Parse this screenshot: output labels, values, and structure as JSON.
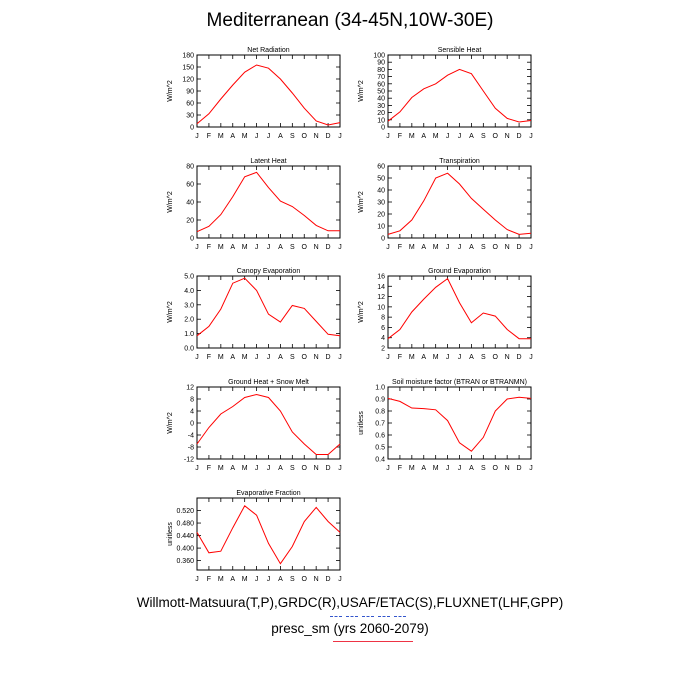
{
  "page": {
    "title": "Mediterranean (34-45N,10W-30E)",
    "legend_line1": "Willmott-Matsuura(T,P),GRDC(R),USAF/ETAC(S),FLUXNET(LHF,GPP)",
    "legend_line2": "presc_sm (yrs 2060-2079)",
    "series_color": "#ff0000"
  },
  "chart_data": [
    {
      "type": "line",
      "title": "Net Radiation",
      "ylabel": "W/m^2",
      "x": [
        "J",
        "F",
        "M",
        "A",
        "M",
        "J",
        "J",
        "A",
        "S",
        "O",
        "N",
        "D",
        "J"
      ],
      "ylim": [
        0,
        180
      ],
      "yticks": [
        0,
        30,
        60,
        90,
        120,
        150,
        180
      ],
      "ytick_labels": [
        "0",
        "30",
        "60",
        "90",
        "120",
        "150",
        "180"
      ],
      "series": [
        {
          "name": "presc_sm",
          "values": [
            8,
            33,
            70,
            105,
            137,
            155,
            147,
            120,
            85,
            47,
            15,
            5,
            11
          ]
        }
      ]
    },
    {
      "type": "line",
      "title": "Sensible Heat",
      "ylabel": "W/m^2",
      "x": [
        "J",
        "F",
        "M",
        "A",
        "M",
        "J",
        "J",
        "A",
        "S",
        "O",
        "N",
        "D",
        "J"
      ],
      "ylim": [
        0,
        100
      ],
      "yticks": [
        0,
        10,
        20,
        30,
        40,
        50,
        60,
        70,
        80,
        90,
        100
      ],
      "ytick_labels": [
        "0",
        "10",
        "20",
        "30",
        "40",
        "50",
        "60",
        "70",
        "80",
        "90",
        "100"
      ],
      "series": [
        {
          "name": "presc_sm",
          "values": [
            8,
            21,
            41,
            53,
            60,
            72,
            80,
            74,
            50,
            26,
            12,
            7,
            9
          ]
        }
      ]
    },
    {
      "type": "line",
      "title": "Latent Heat",
      "ylabel": "W/m^2",
      "x": [
        "J",
        "F",
        "M",
        "A",
        "M",
        "J",
        "J",
        "A",
        "S",
        "O",
        "N",
        "D",
        "J"
      ],
      "ylim": [
        0,
        80
      ],
      "yticks": [
        0,
        20,
        40,
        60,
        80
      ],
      "ytick_labels": [
        "0",
        "20",
        "40",
        "60",
        "80"
      ],
      "series": [
        {
          "name": "presc_sm",
          "values": [
            7,
            13,
            26,
            46,
            68,
            73,
            56,
            41,
            35,
            25,
            14,
            8,
            8
          ]
        }
      ]
    },
    {
      "type": "line",
      "title": "Transpiration",
      "ylabel": "W/m^2",
      "x": [
        "J",
        "F",
        "M",
        "A",
        "M",
        "J",
        "J",
        "A",
        "S",
        "O",
        "N",
        "D",
        "J"
      ],
      "ylim": [
        0,
        60
      ],
      "yticks": [
        0,
        10,
        20,
        30,
        40,
        50,
        60
      ],
      "ytick_labels": [
        "0",
        "10",
        "20",
        "30",
        "40",
        "50",
        "60"
      ],
      "series": [
        {
          "name": "presc_sm",
          "values": [
            3,
            6,
            15,
            31,
            50,
            54,
            45,
            33,
            24,
            15,
            7,
            3,
            4
          ]
        }
      ]
    },
    {
      "type": "line",
      "title": "Canopy Evaporation",
      "ylabel": "W/m^2",
      "x": [
        "J",
        "F",
        "M",
        "A",
        "M",
        "J",
        "J",
        "A",
        "S",
        "O",
        "N",
        "D",
        "J"
      ],
      "ylim": [
        0.0,
        5.0
      ],
      "yticks": [
        0,
        1,
        2,
        3,
        4,
        5
      ],
      "ytick_labels": [
        "0.0",
        "1.0",
        "2.0",
        "3.0",
        "4.0",
        "5.0"
      ],
      "series": [
        {
          "name": "presc_sm",
          "values": [
            0.85,
            1.5,
            2.7,
            4.5,
            4.85,
            4.0,
            2.35,
            1.8,
            2.95,
            2.75,
            1.85,
            0.95,
            0.85
          ]
        }
      ]
    },
    {
      "type": "line",
      "title": "Ground Evaporation",
      "ylabel": "W/m^2",
      "x": [
        "J",
        "F",
        "M",
        "A",
        "M",
        "J",
        "J",
        "A",
        "S",
        "O",
        "N",
        "D",
        "J"
      ],
      "ylim": [
        2,
        16
      ],
      "yticks": [
        2,
        4,
        6,
        8,
        10,
        12,
        14,
        16
      ],
      "ytick_labels": [
        "2",
        "4",
        "6",
        "8",
        "10",
        "12",
        "14",
        "16"
      ],
      "series": [
        {
          "name": "presc_sm",
          "values": [
            3.8,
            5.6,
            9.0,
            11.5,
            13.8,
            15.5,
            10.8,
            6.9,
            8.8,
            8.2,
            5.6,
            3.8,
            3.8
          ]
        }
      ]
    },
    {
      "type": "line",
      "title": "Ground Heat + Snow Melt",
      "ylabel": "W/m^2",
      "x": [
        "J",
        "F",
        "M",
        "A",
        "M",
        "J",
        "J",
        "A",
        "S",
        "O",
        "N",
        "D",
        "J"
      ],
      "ylim": [
        -12,
        12
      ],
      "yticks": [
        -12,
        -8,
        -4,
        0,
        4,
        8,
        12
      ],
      "ytick_labels": [
        "-12",
        "-8",
        "-4",
        "0",
        "4",
        "8",
        "12"
      ],
      "series": [
        {
          "name": "presc_sm",
          "values": [
            -7,
            -1.5,
            3,
            5.5,
            8.5,
            9.5,
            8.5,
            4,
            -3,
            -7,
            -10.5,
            -10.5,
            -7
          ]
        }
      ]
    },
    {
      "type": "line",
      "title": "Soil moisture factor (BTRAN or BTRANMN)",
      "ylabel": "unitless",
      "x": [
        "J",
        "F",
        "M",
        "A",
        "M",
        "J",
        "J",
        "A",
        "S",
        "O",
        "N",
        "D",
        "J"
      ],
      "ylim": [
        0.4,
        1.0
      ],
      "yticks": [
        0.4,
        0.5,
        0.6,
        0.7,
        0.8,
        0.9,
        1.0
      ],
      "ytick_labels": [
        "0.4",
        "0.5",
        "0.6",
        "0.7",
        "0.8",
        "0.9",
        "1.0"
      ],
      "series": [
        {
          "name": "presc_sm",
          "values": [
            0.905,
            0.88,
            0.825,
            0.82,
            0.81,
            0.72,
            0.535,
            0.465,
            0.58,
            0.8,
            0.9,
            0.915,
            0.905
          ]
        }
      ]
    },
    {
      "type": "line",
      "title": "Evaporative Fraction",
      "ylabel": "unitless",
      "x": [
        "J",
        "F",
        "M",
        "A",
        "M",
        "J",
        "J",
        "A",
        "S",
        "O",
        "N",
        "D",
        "J"
      ],
      "ylim": [
        0.33,
        0.56
      ],
      "yticks": [
        0.36,
        0.4,
        0.44,
        0.48,
        0.52
      ],
      "ytick_labels": [
        "0.360",
        "0.400",
        "0.440",
        "0.480",
        "0.520"
      ],
      "series": [
        {
          "name": "presc_sm",
          "values": [
            0.45,
            0.385,
            0.39,
            0.465,
            0.535,
            0.505,
            0.415,
            0.35,
            0.405,
            0.485,
            0.53,
            0.485,
            0.45
          ]
        }
      ]
    }
  ]
}
